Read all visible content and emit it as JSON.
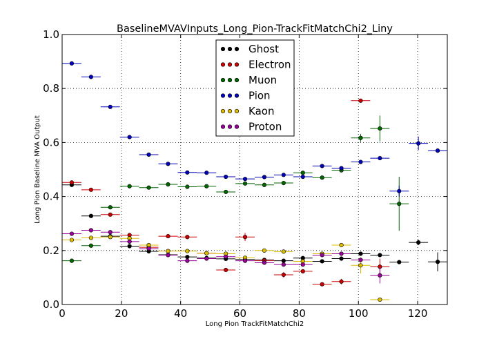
{
  "chart_data": {
    "type": "scatter",
    "title": "BaselineMVAVInputs_Long_Pion-TrackFitMatchChi2_Liny",
    "xlabel": "Long Pion TrackFitMatchChi2",
    "ylabel": "Long Pion Baseline MVA Output",
    "xlim": [
      0,
      130
    ],
    "ylim": [
      0.0,
      1.0
    ],
    "xticks": [
      "0",
      "20",
      "40",
      "60",
      "80",
      "100",
      "120"
    ],
    "yticks": [
      "0.0",
      "0.2",
      "0.4",
      "0.6",
      "0.8",
      "1.0"
    ],
    "grid": true,
    "legend_position": "top-center",
    "bin_halfwidth": 3.25,
    "series": [
      {
        "name": "Ghost",
        "color": "#000000",
        "points": [
          {
            "x": 3.25,
            "y": 0.443
          },
          {
            "x": 9.75,
            "y": 0.328
          },
          {
            "x": 16.25,
            "y": 0.253
          },
          {
            "x": 22.75,
            "y": 0.216
          },
          {
            "x": 29.25,
            "y": 0.197
          },
          {
            "x": 35.75,
            "y": 0.184
          },
          {
            "x": 42.25,
            "y": 0.176
          },
          {
            "x": 48.75,
            "y": 0.172
          },
          {
            "x": 55.25,
            "y": 0.169
          },
          {
            "x": 61.75,
            "y": 0.167
          },
          {
            "x": 68.25,
            "y": 0.165
          },
          {
            "x": 74.75,
            "y": 0.162
          },
          {
            "x": 81.25,
            "y": 0.172
          },
          {
            "x": 87.75,
            "y": 0.16
          },
          {
            "x": 94.25,
            "y": 0.17
          },
          {
            "x": 100.75,
            "y": 0.188
          },
          {
            "x": 107.25,
            "y": 0.183
          },
          {
            "x": 113.75,
            "y": 0.157
          },
          {
            "x": 120.25,
            "y": 0.23,
            "err": 0.01
          },
          {
            "x": 126.75,
            "y": 0.158,
            "err": 0.035
          }
        ]
      },
      {
        "name": "Electron",
        "color": "#cc0000",
        "points": [
          {
            "x": 3.25,
            "y": 0.452
          },
          {
            "x": 9.75,
            "y": 0.425
          },
          {
            "x": 16.25,
            "y": 0.333
          },
          {
            "x": 22.75,
            "y": 0.257
          },
          {
            "x": 29.25,
            "y": 0.212
          },
          {
            "x": 35.75,
            "y": 0.253
          },
          {
            "x": 42.25,
            "y": 0.25
          },
          {
            "x": 48.75,
            "y": 0.19
          },
          {
            "x": 55.25,
            "y": 0.128
          },
          {
            "x": 61.75,
            "y": 0.25,
            "err": 0.015
          },
          {
            "x": 68.25,
            "y": 0.163
          },
          {
            "x": 74.75,
            "y": 0.11,
            "err": 0.01
          },
          {
            "x": 81.25,
            "y": 0.123
          },
          {
            "x": 87.75,
            "y": 0.075
          },
          {
            "x": 94.25,
            "y": 0.085,
            "err": 0.01
          },
          {
            "x": 100.75,
            "y": 0.755
          },
          {
            "x": 107.25,
            "y": 0.14,
            "err": 0.03
          }
        ]
      },
      {
        "name": "Muon",
        "color": "#006600",
        "points": [
          {
            "x": 3.25,
            "y": 0.162
          },
          {
            "x": 9.75,
            "y": 0.218
          },
          {
            "x": 16.25,
            "y": 0.36
          },
          {
            "x": 22.75,
            "y": 0.438
          },
          {
            "x": 29.25,
            "y": 0.433
          },
          {
            "x": 35.75,
            "y": 0.445
          },
          {
            "x": 42.25,
            "y": 0.436
          },
          {
            "x": 48.75,
            "y": 0.438
          },
          {
            "x": 55.25,
            "y": 0.417
          },
          {
            "x": 61.75,
            "y": 0.448
          },
          {
            "x": 68.25,
            "y": 0.443
          },
          {
            "x": 74.75,
            "y": 0.45
          },
          {
            "x": 81.25,
            "y": 0.488
          },
          {
            "x": 87.75,
            "y": 0.47
          },
          {
            "x": 94.25,
            "y": 0.497
          },
          {
            "x": 100.75,
            "y": 0.617,
            "err": 0.015
          },
          {
            "x": 107.25,
            "y": 0.652,
            "err": 0.048
          },
          {
            "x": 113.75,
            "y": 0.373,
            "err": 0.1
          }
        ]
      },
      {
        "name": "Pion",
        "color": "#0000bb",
        "points": [
          {
            "x": 3.25,
            "y": 0.893
          },
          {
            "x": 9.75,
            "y": 0.843
          },
          {
            "x": 16.25,
            "y": 0.732
          },
          {
            "x": 22.75,
            "y": 0.62
          },
          {
            "x": 29.25,
            "y": 0.555
          },
          {
            "x": 35.75,
            "y": 0.521
          },
          {
            "x": 42.25,
            "y": 0.489
          },
          {
            "x": 48.75,
            "y": 0.488
          },
          {
            "x": 55.25,
            "y": 0.473
          },
          {
            "x": 61.75,
            "y": 0.465
          },
          {
            "x": 68.25,
            "y": 0.472
          },
          {
            "x": 74.75,
            "y": 0.48
          },
          {
            "x": 81.25,
            "y": 0.473
          },
          {
            "x": 87.75,
            "y": 0.513
          },
          {
            "x": 94.25,
            "y": 0.505
          },
          {
            "x": 100.75,
            "y": 0.528
          },
          {
            "x": 107.25,
            "y": 0.542
          },
          {
            "x": 113.75,
            "y": 0.42,
            "err": 0.02
          },
          {
            "x": 120.25,
            "y": 0.597,
            "err": 0.025
          },
          {
            "x": 126.75,
            "y": 0.57
          }
        ]
      },
      {
        "name": "Kaon",
        "color": "#ddbb00",
        "points": [
          {
            "x": 3.25,
            "y": 0.239
          },
          {
            "x": 9.75,
            "y": 0.247
          },
          {
            "x": 16.25,
            "y": 0.25
          },
          {
            "x": 22.75,
            "y": 0.245
          },
          {
            "x": 29.25,
            "y": 0.22
          },
          {
            "x": 35.75,
            "y": 0.198
          },
          {
            "x": 42.25,
            "y": 0.198
          },
          {
            "x": 48.75,
            "y": 0.19
          },
          {
            "x": 55.25,
            "y": 0.188
          },
          {
            "x": 61.75,
            "y": 0.173
          },
          {
            "x": 68.25,
            "y": 0.2
          },
          {
            "x": 74.75,
            "y": 0.196
          },
          {
            "x": 81.25,
            "y": 0.16
          },
          {
            "x": 87.75,
            "y": 0.188
          },
          {
            "x": 94.25,
            "y": 0.22
          },
          {
            "x": 100.75,
            "y": 0.145,
            "err": 0.03
          },
          {
            "x": 107.25,
            "y": 0.018
          }
        ]
      },
      {
        "name": "Proton",
        "color": "#990099",
        "points": [
          {
            "x": 3.25,
            "y": 0.262
          },
          {
            "x": 9.75,
            "y": 0.275
          },
          {
            "x": 16.25,
            "y": 0.268
          },
          {
            "x": 22.75,
            "y": 0.233
          },
          {
            "x": 29.25,
            "y": 0.207
          },
          {
            "x": 35.75,
            "y": 0.183
          },
          {
            "x": 42.25,
            "y": 0.162
          },
          {
            "x": 48.75,
            "y": 0.17
          },
          {
            "x": 55.25,
            "y": 0.177
          },
          {
            "x": 61.75,
            "y": 0.162
          },
          {
            "x": 68.25,
            "y": 0.155
          },
          {
            "x": 74.75,
            "y": 0.148
          },
          {
            "x": 81.25,
            "y": 0.148
          },
          {
            "x": 87.75,
            "y": 0.183
          },
          {
            "x": 94.25,
            "y": 0.188
          },
          {
            "x": 100.75,
            "y": 0.165
          },
          {
            "x": 107.25,
            "y": 0.108,
            "err": 0.03
          }
        ]
      }
    ]
  }
}
